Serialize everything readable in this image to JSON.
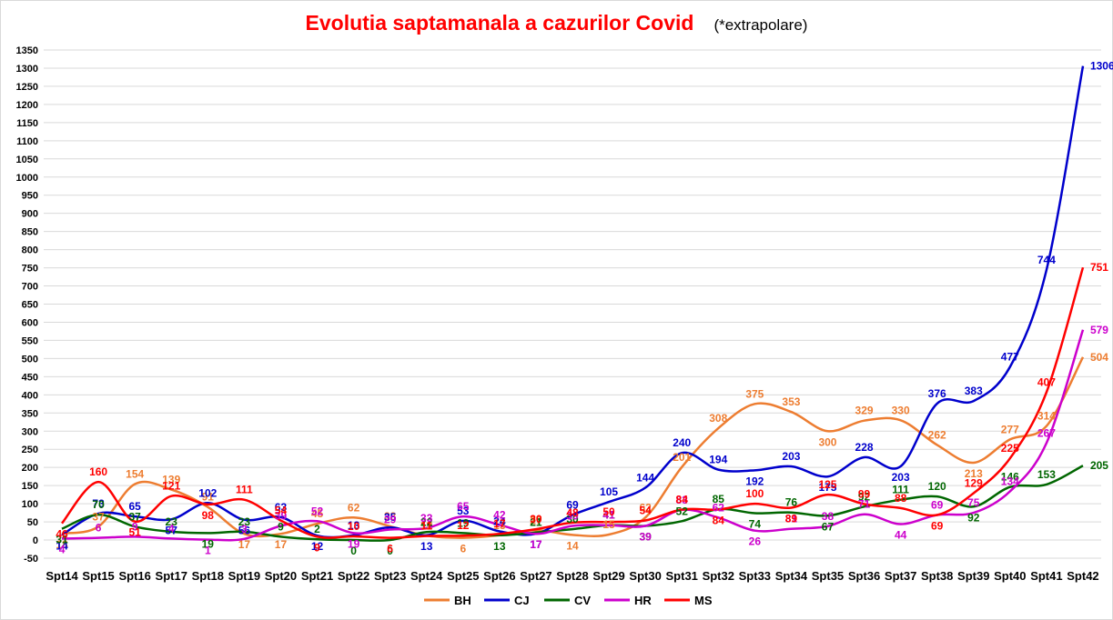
{
  "chart_data": {
    "type": "line",
    "title": "Evolutia saptamanala a cazurilor Covid",
    "subtitle": "(*extrapolare)",
    "xlabel": "",
    "ylabel": "",
    "ylim": [
      -50,
      1350
    ],
    "ytick_step": 50,
    "grid": true,
    "legend_position": "bottom",
    "categories": [
      "Spt14",
      "Spt15",
      "Spt16",
      "Spt17",
      "Spt18",
      "Spt19",
      "Spt20",
      "Spt21",
      "Spt22",
      "Spt23",
      "Spt24",
      "Spt25",
      "Spt26",
      "Spt27",
      "Spt28",
      "Spt29",
      "Spt30",
      "Spt31",
      "Spt32",
      "Spt33",
      "Spt34",
      "Spt35",
      "Spt36",
      "Spt37",
      "Spt38",
      "Spt39",
      "Spt40",
      "Spt41",
      "Spt42"
    ],
    "series": [
      {
        "name": "BH",
        "color": "#ed7d31",
        "values": [
          18,
          37,
          154,
          139,
          91,
          17,
          17,
          45,
          62,
          38,
          12,
          6,
          13,
          27,
          14,
          15,
          62,
          201,
          308,
          375,
          353,
          300,
          329,
          330,
          262,
          213,
          277,
          314,
          504
        ]
      },
      {
        "name": "CJ",
        "color": "#0000cc",
        "values": [
          14,
          73,
          65,
          57,
          102,
          56,
          63,
          12,
          13,
          35,
          13,
          53,
          24,
          17,
          69,
          105,
          144,
          240,
          194,
          192,
          203,
          175,
          228,
          203,
          376,
          383,
          477,
          744,
          1306
        ]
      },
      {
        "name": "CV",
        "color": "#006600",
        "values": [
          31,
          70,
          37,
          23,
          19,
          23,
          9,
          2,
          0,
          0,
          22,
          19,
          13,
          21,
          30,
          41,
          39,
          52,
          85,
          74,
          76,
          67,
          92,
          111,
          120,
          92,
          146,
          153,
          205
        ]
      },
      {
        "name": "HR",
        "color": "#cc00cc",
        "values": [
          4,
          6,
          9,
          4,
          1,
          3,
          39,
          52,
          19,
          29,
          33,
          65,
          42,
          17,
          39,
          41,
          39,
          83,
          62,
          26,
          31,
          38,
          71,
          44,
          69,
          75,
          134,
          267,
          579
        ]
      },
      {
        "name": "MS",
        "color": "#ff0000",
        "values": [
          46,
          160,
          51,
          121,
          98,
          111,
          54,
          9,
          10,
          6,
          11,
          12,
          17,
          30,
          48,
          50,
          54,
          84,
          84,
          100,
          89,
          125,
          99,
          88,
          69,
          129,
          225,
          407,
          751
        ]
      }
    ]
  }
}
